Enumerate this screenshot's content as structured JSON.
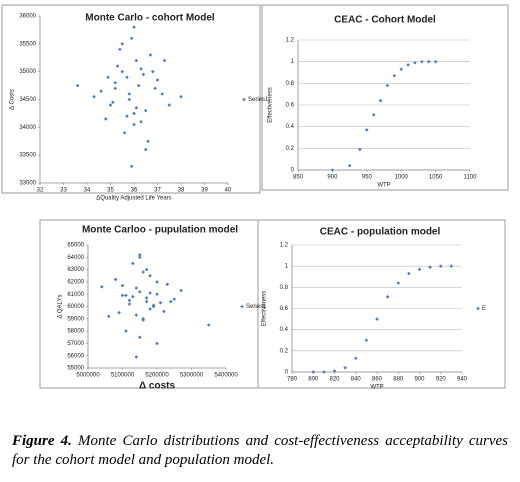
{
  "chart_data": [
    {
      "type": "scatter",
      "title": "Monte Carlo - cohort Model",
      "xlabel": "ΔQuality Adjusted Life Years",
      "ylabel": "Δ Costs",
      "legend": "Series1",
      "legend_position": "right",
      "color": "#4a7ebb",
      "grid": false,
      "xlim": [
        32,
        40
      ],
      "xticks": [
        32,
        33,
        34,
        35,
        36,
        37,
        38,
        39,
        40
      ],
      "ylim": [
        33000,
        36000
      ],
      "yticks": [
        33000,
        33500,
        34000,
        34500,
        35000,
        35500,
        36000
      ],
      "x": [
        35.2,
        36.1,
        35.8,
        36.5,
        34.9,
        36.9,
        35.5,
        36.3,
        37.2,
        35.0,
        36.0,
        35.7,
        36.8,
        34.6,
        35.9,
        36.4,
        37.5,
        35.3,
        36.2,
        35.6,
        36.7,
        34.3,
        36.0,
        35.4,
        37.0,
        35.8,
        36.6,
        35.1,
        36.3,
        38.0,
        33.6,
        35.9,
        36.1,
        34.8,
        37.3,
        35.7,
        36.5,
        35.2,
        36.0,
        35.5
      ],
      "y": [
        34800,
        35200,
        34500,
        34300,
        34900,
        34700,
        35500,
        34100,
        34600,
        34400,
        35800,
        34200,
        35000,
        34650,
        33300,
        34950,
        34400,
        35100,
        34750,
        33900,
        35300,
        34550,
        34050,
        35400,
        34850,
        34600,
        33750,
        34450,
        35050,
        34550,
        34750,
        35600,
        34350,
        34150,
        35200,
        34900,
        33600,
        34700,
        34250,
        35000
      ]
    },
    {
      "type": "scatter",
      "title": "CEAC - Cohort Model",
      "xlabel": "WTP",
      "ylabel": "Effectiveness",
      "color": "#4a7ebb",
      "grid": true,
      "xlim": [
        850,
        1100
      ],
      "xticks": [
        850,
        900,
        950,
        1000,
        1050,
        1100
      ],
      "ylim": [
        0,
        1.2
      ],
      "yticks": [
        0,
        0.2,
        0.4,
        0.6,
        0.8,
        1,
        1.2
      ],
      "x": [
        900,
        925,
        940,
        950,
        960,
        970,
        980,
        990,
        1000,
        1010,
        1020,
        1030,
        1040,
        1050
      ],
      "y": [
        0,
        0.04,
        0.19,
        0.37,
        0.51,
        0.64,
        0.78,
        0.87,
        0.93,
        0.97,
        0.99,
        1,
        1,
        1
      ]
    },
    {
      "type": "scatter",
      "title": "Monte Carloo - pupulation model",
      "xlabel": "Δ costs",
      "ylabel": "Δ QALYs",
      "legend": "Series1",
      "legend_position": "right",
      "color": "#4a7ebb",
      "grid": false,
      "xlim": [
        5000000,
        5400000
      ],
      "xticks": [
        5000000,
        5100000,
        5200000,
        5300000,
        5400000
      ],
      "ylim": [
        55000,
        65000
      ],
      "yticks": [
        55000,
        56000,
        57000,
        58000,
        59000,
        60000,
        61000,
        62000,
        63000,
        64000,
        65000
      ],
      "x": [
        5120000,
        5150000,
        5180000,
        5100000,
        5200000,
        5160000,
        5140000,
        5210000,
        5090000,
        5170000,
        5130000,
        5230000,
        5110000,
        5190000,
        5150000,
        5250000,
        5060000,
        5180000,
        5140000,
        5200000,
        5120000,
        5160000,
        5270000,
        5080000,
        5170000,
        5150000,
        5220000,
        5130000,
        5190000,
        5100000,
        5350000,
        5040000,
        5160000,
        5240000,
        5140000,
        5180000,
        5110000,
        5200000,
        5150000,
        5170000
      ],
      "y": [
        60500,
        61200,
        59800,
        60900,
        62000,
        58900,
        61500,
        60300,
        59500,
        63000,
        60800,
        61800,
        58000,
        60100,
        64000,
        60600,
        59200,
        62500,
        55900,
        61000,
        60200,
        59000,
        61300,
        62200,
        60700,
        57500,
        59600,
        63500,
        60000,
        61700,
        58500,
        61600,
        62800,
        60400,
        59300,
        61100,
        60900,
        57000,
        64200,
        60400
      ]
    },
    {
      "type": "scatter",
      "title": "CEAC - population model",
      "xlabel": "WTP",
      "ylabel": "Effectiveness",
      "legend": "E",
      "legend_position": "right",
      "color": "#4a7ebb",
      "grid": true,
      "xlim": [
        780,
        940
      ],
      "xticks": [
        780,
        800,
        820,
        840,
        860,
        880,
        900,
        920,
        940
      ],
      "ylim": [
        0,
        1.2
      ],
      "yticks": [
        0,
        0.2,
        0.4,
        0.6,
        0.8,
        1,
        1.2
      ],
      "x": [
        800,
        810,
        820,
        830,
        840,
        850,
        860,
        870,
        880,
        890,
        900,
        910,
        920,
        930
      ],
      "y": [
        0,
        0,
        0.01,
        0.04,
        0.13,
        0.3,
        0.5,
        0.71,
        0.84,
        0.93,
        0.97,
        0.99,
        1,
        1
      ]
    }
  ],
  "caption": {
    "label": "Figure 4.",
    "text": "Monte Carlo distributions and cost-effectiveness acceptability curves for the cohort model and population model."
  }
}
